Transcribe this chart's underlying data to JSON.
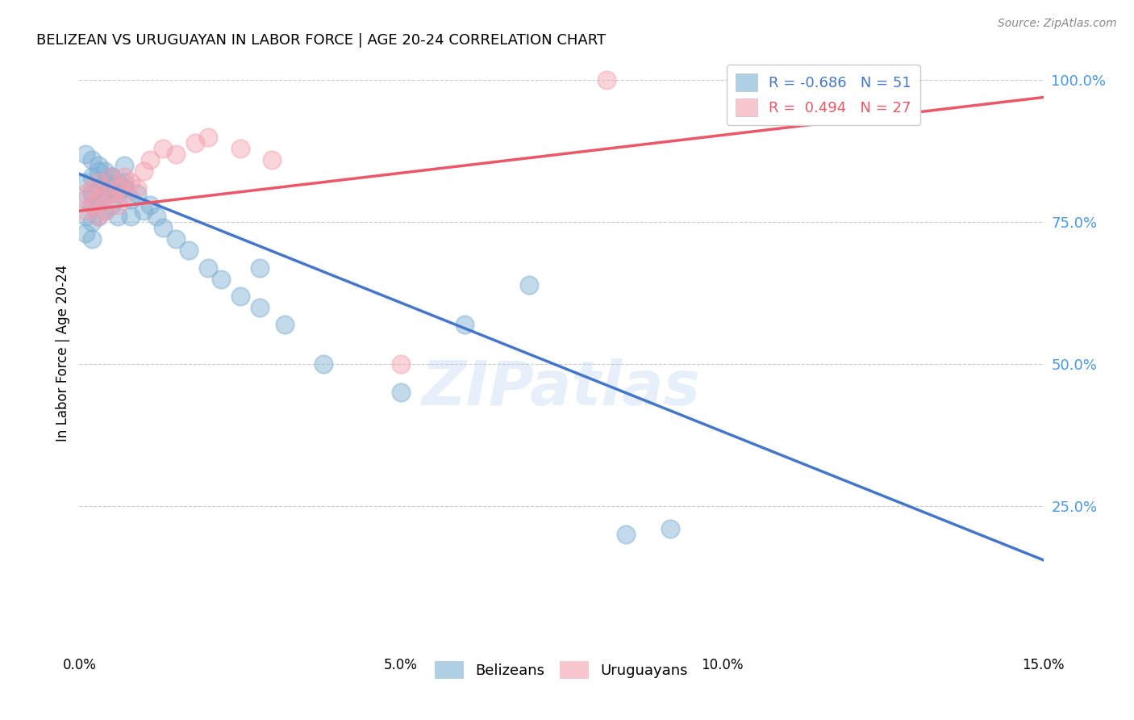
{
  "title": "BELIZEAN VS URUGUAYAN IN LABOR FORCE | AGE 20-24 CORRELATION CHART",
  "source": "Source: ZipAtlas.com",
  "ylabel": "In Labor Force | Age 20-24",
  "xmin": 0.0,
  "xmax": 0.15,
  "ymin": 0.0,
  "ymax": 1.04,
  "blue_dot_color": "#7BAFD4",
  "pink_dot_color": "#F4A0B0",
  "blue_line_color": "#4477CC",
  "pink_line_color": "#EE5566",
  "blue_R": -0.686,
  "blue_N": 51,
  "pink_R": 0.494,
  "pink_N": 27,
  "xtick_vals": [
    0.0,
    0.05,
    0.1,
    0.15
  ],
  "ytick_right_vals": [
    1.0,
    0.75,
    0.5,
    0.25
  ],
  "background_color": "#FFFFFF",
  "watermark": "ZIPatlas",
  "belizean_x": [
    0.001,
    0.001,
    0.001,
    0.001,
    0.002,
    0.002,
    0.002,
    0.002,
    0.002,
    0.003,
    0.003,
    0.003,
    0.003,
    0.004,
    0.004,
    0.004,
    0.005,
    0.005,
    0.005,
    0.006,
    0.006,
    0.007,
    0.007,
    0.008,
    0.008,
    0.009,
    0.01,
    0.011,
    0.012,
    0.013,
    0.015,
    0.017,
    0.02,
    0.022,
    0.025,
    0.028,
    0.032,
    0.001,
    0.002,
    0.003,
    0.004,
    0.005,
    0.006,
    0.007,
    0.05,
    0.06,
    0.07,
    0.038,
    0.028,
    0.085,
    0.092
  ],
  "belizean_y": [
    0.82,
    0.79,
    0.76,
    0.73,
    0.83,
    0.8,
    0.78,
    0.75,
    0.72,
    0.84,
    0.81,
    0.79,
    0.76,
    0.82,
    0.8,
    0.77,
    0.83,
    0.81,
    0.78,
    0.8,
    0.76,
    0.85,
    0.82,
    0.79,
    0.76,
    0.8,
    0.77,
    0.78,
    0.76,
    0.74,
    0.72,
    0.7,
    0.67,
    0.65,
    0.62,
    0.6,
    0.57,
    0.87,
    0.86,
    0.85,
    0.84,
    0.83,
    0.82,
    0.81,
    0.45,
    0.57,
    0.64,
    0.5,
    0.67,
    0.2,
    0.21
  ],
  "uruguayan_x": [
    0.001,
    0.001,
    0.002,
    0.002,
    0.003,
    0.003,
    0.003,
    0.004,
    0.004,
    0.005,
    0.005,
    0.006,
    0.006,
    0.007,
    0.007,
    0.008,
    0.009,
    0.01,
    0.011,
    0.013,
    0.015,
    0.018,
    0.02,
    0.025,
    0.03,
    0.05,
    0.082
  ],
  "uruguayan_y": [
    0.8,
    0.77,
    0.81,
    0.78,
    0.82,
    0.79,
    0.76,
    0.8,
    0.77,
    0.83,
    0.8,
    0.81,
    0.78,
    0.83,
    0.8,
    0.82,
    0.81,
    0.84,
    0.86,
    0.88,
    0.87,
    0.89,
    0.9,
    0.88,
    0.86,
    0.5,
    1.0
  ],
  "blue_line_x0": 0.0,
  "blue_line_y0": 0.835,
  "blue_line_x1": 0.15,
  "blue_line_y1": 0.155,
  "pink_line_x0": 0.0,
  "pink_line_y0": 0.77,
  "pink_line_x1": 0.15,
  "pink_line_y1": 0.97
}
